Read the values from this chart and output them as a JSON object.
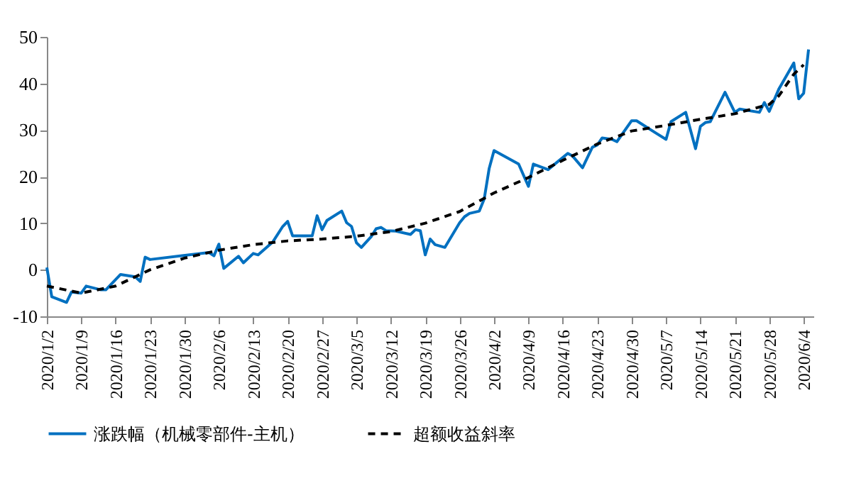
{
  "chart_data": {
    "type": "line",
    "series": [
      {
        "name": "涨跌幅（机械零部件-主机）",
        "color": "#0070c0",
        "line_style": "solid",
        "x": [
          "2020-01-02",
          "2020-01-03",
          "2020-01-06",
          "2020-01-07",
          "2020-01-09",
          "2020-01-10",
          "2020-01-13",
          "2020-01-14",
          "2020-01-17",
          "2020-01-20",
          "2020-01-21",
          "2020-01-22",
          "2020-01-23",
          "2020-02-04",
          "2020-02-05",
          "2020-02-06",
          "2020-02-07",
          "2020-02-10",
          "2020-02-11",
          "2020-02-13",
          "2020-02-14",
          "2020-02-17",
          "2020-02-19",
          "2020-02-20",
          "2020-02-21",
          "2020-02-25",
          "2020-02-26",
          "2020-02-27",
          "2020-02-28",
          "2020-03-02",
          "2020-03-03",
          "2020-03-04",
          "2020-03-05",
          "2020-03-06",
          "2020-03-08",
          "2020-03-09",
          "2020-03-10",
          "2020-03-11",
          "2020-03-13",
          "2020-03-16",
          "2020-03-17",
          "2020-03-18",
          "2020-03-19",
          "2020-03-20",
          "2020-03-21",
          "2020-03-23",
          "2020-03-26",
          "2020-03-27",
          "2020-03-28",
          "2020-03-30",
          "2020-03-31",
          "2020-04-01",
          "2020-04-02",
          "2020-04-07",
          "2020-04-09",
          "2020-04-10",
          "2020-04-13",
          "2020-04-17",
          "2020-04-18",
          "2020-04-20",
          "2020-04-22",
          "2020-04-23",
          "2020-04-24",
          "2020-04-26",
          "2020-04-27",
          "2020-04-30",
          "2020-05-01",
          "2020-05-05",
          "2020-05-07",
          "2020-05-08",
          "2020-05-11",
          "2020-05-13",
          "2020-05-14",
          "2020-05-15",
          "2020-05-16",
          "2020-05-19",
          "2020-05-21",
          "2020-05-22",
          "2020-05-26",
          "2020-05-27",
          "2020-05-28",
          "2020-05-30",
          "2020-06-02",
          "2020-06-03",
          "2020-06-04",
          "2020-06-05"
        ],
        "values": [
          0.5,
          -5.8,
          -7,
          -4.8,
          -5,
          -3.5,
          -4.3,
          -4.3,
          -1,
          -1.5,
          -2.5,
          2.7,
          2.2,
          3.7,
          3.0,
          5.5,
          0.3,
          2.9,
          1.5,
          3.5,
          3.2,
          6,
          9.3,
          10.4,
          7.3,
          7.3,
          11.6,
          8.6,
          10.6,
          12.6,
          10.1,
          9.3,
          5.8,
          4.8,
          7.1,
          8.8,
          9.1,
          8.4,
          8.3,
          7.6,
          8.6,
          8.4,
          3.2,
          6.6,
          5.4,
          4.8,
          10.1,
          11.4,
          12.1,
          12.6,
          15.2,
          21.7,
          25.6,
          22.7,
          17.9,
          22.7,
          21.5,
          25,
          24.4,
          21.9,
          26.3,
          26.8,
          28.3,
          28,
          27.5,
          32,
          32,
          29.3,
          28,
          31.8,
          33.8,
          26,
          30.8,
          31.6,
          31.8,
          38.1,
          33.8,
          34.5,
          33.8,
          35.9,
          34,
          38.9,
          44.4,
          36.7,
          37.9,
          47.3
        ]
      },
      {
        "name": "超额收益斜率",
        "color": "#000000",
        "line_style": "dashed",
        "x": [
          "2020-01-02",
          "2020-01-09",
          "2020-01-16",
          "2020-01-23",
          "2020-01-30",
          "2020-02-06",
          "2020-02-13",
          "2020-02-20",
          "2020-02-27",
          "2020-03-05",
          "2020-03-12",
          "2020-03-19",
          "2020-03-26",
          "2020-04-02",
          "2020-04-09",
          "2020-04-16",
          "2020-04-23",
          "2020-04-30",
          "2020-05-07",
          "2020-05-14",
          "2020-05-21",
          "2020-05-28",
          "2020-05-30",
          "2020-06-02",
          "2020-06-04"
        ],
        "values": [
          -3.5,
          -5,
          -3.5,
          0,
          2.5,
          4.2,
          5.4,
          6.2,
          6.6,
          7.2,
          8.2,
          10,
          12.5,
          16.5,
          19.8,
          23.5,
          27,
          29.8,
          31,
          32.3,
          33.5,
          35.5,
          37.4,
          42,
          44
        ]
      }
    ],
    "ylim": [
      -10,
      50
    ],
    "yticks": [
      -10,
      0,
      10,
      20,
      30,
      40,
      50
    ],
    "xlim": [
      "2020-01-02",
      "2020-06-06"
    ],
    "xticks": [
      {
        "value": "2020-01-02",
        "label": "2020/1/2"
      },
      {
        "value": "2020-01-09",
        "label": "2020/1/9"
      },
      {
        "value": "2020-01-16",
        "label": "2020/1/16"
      },
      {
        "value": "2020-01-23",
        "label": "2020/1/23"
      },
      {
        "value": "2020-01-30",
        "label": "2020/1/30"
      },
      {
        "value": "2020-02-06",
        "label": "2020/2/6"
      },
      {
        "value": "2020-02-13",
        "label": "2020/2/13"
      },
      {
        "value": "2020-02-20",
        "label": "2020/2/20"
      },
      {
        "value": "2020-02-27",
        "label": "2020/2/27"
      },
      {
        "value": "2020-03-05",
        "label": "2020/3/5"
      },
      {
        "value": "2020-03-12",
        "label": "2020/3/12"
      },
      {
        "value": "2020-03-19",
        "label": "2020/3/19"
      },
      {
        "value": "2020-03-26",
        "label": "2020/3/26"
      },
      {
        "value": "2020-04-02",
        "label": "2020/4/2"
      },
      {
        "value": "2020-04-09",
        "label": "2020/4/9"
      },
      {
        "value": "2020-04-16",
        "label": "2020/4/16"
      },
      {
        "value": "2020-04-23",
        "label": "2020/4/23"
      },
      {
        "value": "2020-04-30",
        "label": "2020/4/30"
      },
      {
        "value": "2020-05-07",
        "label": "2020/5/7"
      },
      {
        "value": "2020-05-14",
        "label": "2020/5/14"
      },
      {
        "value": "2020-05-21",
        "label": "2020/5/21"
      },
      {
        "value": "2020-05-28",
        "label": "2020/5/28"
      },
      {
        "value": "2020-06-04",
        "label": "2020/6/4"
      }
    ],
    "legend": "bottom",
    "grid": false,
    "marker": "none"
  }
}
